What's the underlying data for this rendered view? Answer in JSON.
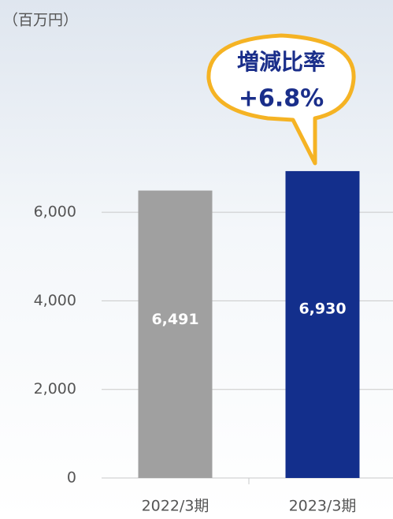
{
  "chart_data": {
    "type": "bar",
    "unit_label": "（百万円）",
    "annotation": {
      "lines": [
        "増減比率",
        "+6.8%"
      ]
    },
    "categories": [
      "2022/3期",
      "2023/3期"
    ],
    "values": [
      6491,
      6930
    ],
    "value_labels": [
      "6,491",
      "6,930"
    ],
    "colors": [
      "#a0a0a0",
      "#132f8c"
    ],
    "ylim": [
      0,
      7000
    ],
    "yticks": [
      0,
      {
        "value": 2000,
        "label": "2,000"
      },
      {
        "value": 4000,
        "label": "4,000"
      },
      {
        "value": 6000,
        "label": "6,000"
      }
    ],
    "grid": true
  }
}
